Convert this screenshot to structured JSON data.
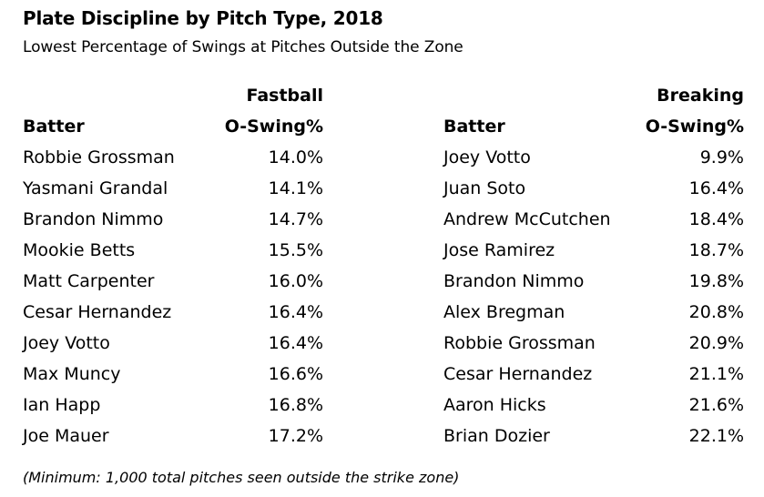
{
  "title": "Plate Discipline by Pitch Type, 2018",
  "subtitle": "Lowest Percentage of Swings at Pitches Outside the Zone",
  "tables": [
    {
      "group": "Fastball",
      "col_batter": "Batter",
      "col_value": "O-Swing%",
      "rows": [
        {
          "batter": "Robbie Grossman",
          "value": "14.0%"
        },
        {
          "batter": "Yasmani Grandal",
          "value": "14.1%"
        },
        {
          "batter": "Brandon Nimmo",
          "value": "14.7%"
        },
        {
          "batter": "Mookie Betts",
          "value": "15.5%"
        },
        {
          "batter": "Matt Carpenter",
          "value": "16.0%"
        },
        {
          "batter": "Cesar Hernandez",
          "value": "16.4%"
        },
        {
          "batter": "Joey Votto",
          "value": "16.4%"
        },
        {
          "batter": "Max Muncy",
          "value": "16.6%"
        },
        {
          "batter": "Ian Happ",
          "value": "16.8%"
        },
        {
          "batter": "Joe Mauer",
          "value": "17.2%"
        }
      ]
    },
    {
      "group": "Breaking",
      "col_batter": "Batter",
      "col_value": "O-Swing%",
      "rows": [
        {
          "batter": "Joey Votto",
          "value": "9.9%"
        },
        {
          "batter": "Juan Soto",
          "value": "16.4%"
        },
        {
          "batter": "Andrew McCutchen",
          "value": "18.4%"
        },
        {
          "batter": "Jose Ramirez",
          "value": "18.7%"
        },
        {
          "batter": "Brandon Nimmo",
          "value": "19.8%"
        },
        {
          "batter": "Alex Bregman",
          "value": "20.8%"
        },
        {
          "batter": "Robbie Grossman",
          "value": "20.9%"
        },
        {
          "batter": "Cesar Hernandez",
          "value": "21.1%"
        },
        {
          "batter": "Aaron Hicks",
          "value": "21.6%"
        },
        {
          "batter": "Brian Dozier",
          "value": "22.1%"
        }
      ]
    }
  ],
  "footnote": "(Minimum: 1,000 total pitches seen outside the strike zone)"
}
